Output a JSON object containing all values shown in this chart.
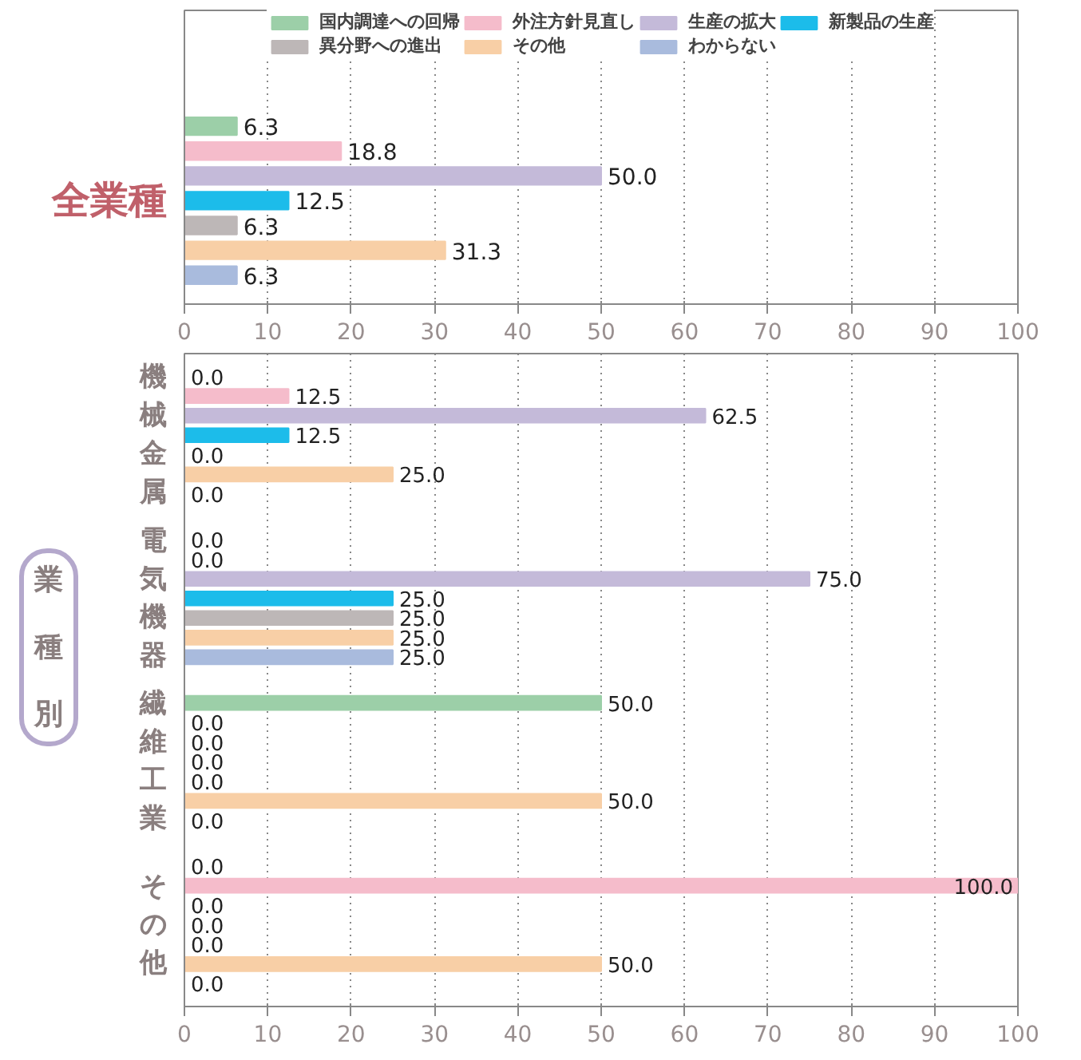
{
  "chart_data": [
    {
      "type": "bar",
      "orientation": "horizontal",
      "categories": [
        "全業種"
      ],
      "series": [
        {
          "name": "国内調達への回帰",
          "color": "#9ccfa8",
          "values": [
            6.3
          ],
          "value_labels": [
            "6.3"
          ]
        },
        {
          "name": "外注方針見直し",
          "color": "#f5bccb",
          "values": [
            18.8
          ],
          "value_labels": [
            "18.8"
          ]
        },
        {
          "name": "生産の拡大",
          "color": "#c4bad9",
          "values": [
            50.0
          ],
          "value_labels": [
            "50.0"
          ]
        },
        {
          "name": "新製品の生産",
          "color": "#1cbcea",
          "values": [
            12.5
          ],
          "value_labels": [
            "12.5"
          ]
        },
        {
          "name": "異分野への進出",
          "color": "#bdb7b7",
          "values": [
            6.3
          ],
          "value_labels": [
            "6.3"
          ]
        },
        {
          "name": "その他",
          "color": "#f8cfa6",
          "values": [
            31.3
          ],
          "value_labels": [
            "31.3"
          ]
        },
        {
          "name": "わからない",
          "color": "#a9bbdd",
          "values": [
            6.3
          ],
          "value_labels": [
            "6.3"
          ]
        }
      ],
      "xlim": [
        0,
        100
      ],
      "xticks": [
        0,
        10,
        20,
        30,
        40,
        50,
        60,
        70,
        80,
        90,
        100
      ],
      "grid": "x",
      "legend": "top"
    },
    {
      "type": "bar",
      "orientation": "horizontal",
      "ylabel": "業種別",
      "categories": [
        "機械金属",
        "電気機器",
        "繊維工業",
        "その他"
      ],
      "series": [
        {
          "color": "#9ccfa8",
          "values": [
            0.0,
            0.0,
            50.0,
            0.0
          ],
          "value_labels": [
            "0.0",
            "0.0",
            "50.0",
            "0.0"
          ]
        },
        {
          "color": "#f5bccb",
          "values": [
            12.5,
            0.0,
            0.0,
            100.0
          ],
          "value_labels": [
            "12.5",
            "0.0",
            "0.0",
            "100.0"
          ]
        },
        {
          "color": "#c4bad9",
          "values": [
            62.5,
            75.0,
            0.0,
            0.0
          ],
          "value_labels": [
            "62.5",
            "75.0",
            "0.0",
            "0.0"
          ]
        },
        {
          "color": "#1cbcea",
          "values": [
            12.5,
            25.0,
            0.0,
            0.0
          ],
          "value_labels": [
            "12.5",
            "25.0",
            "0.0",
            "0.0"
          ]
        },
        {
          "color": "#bdb7b7",
          "values": [
            0.0,
            25.0,
            0.0,
            0.0
          ],
          "value_labels": [
            "0.0",
            "25.0",
            "0.0",
            "0.0"
          ]
        },
        {
          "color": "#f8cfa6",
          "values": [
            25.0,
            25.0,
            50.0,
            50.0
          ],
          "value_labels": [
            "25.0",
            "25.0",
            "50.0",
            "50.0"
          ]
        },
        {
          "color": "#a9bbdd",
          "values": [
            0.0,
            25.0,
            0.0,
            0.0
          ],
          "value_labels": [
            "0.0",
            "25.0",
            "0.0",
            "0.0"
          ]
        }
      ],
      "xlim": [
        0,
        100
      ],
      "xticks": [
        0,
        10,
        20,
        30,
        40,
        50,
        60,
        70,
        80,
        90,
        100
      ],
      "grid": "x"
    }
  ]
}
